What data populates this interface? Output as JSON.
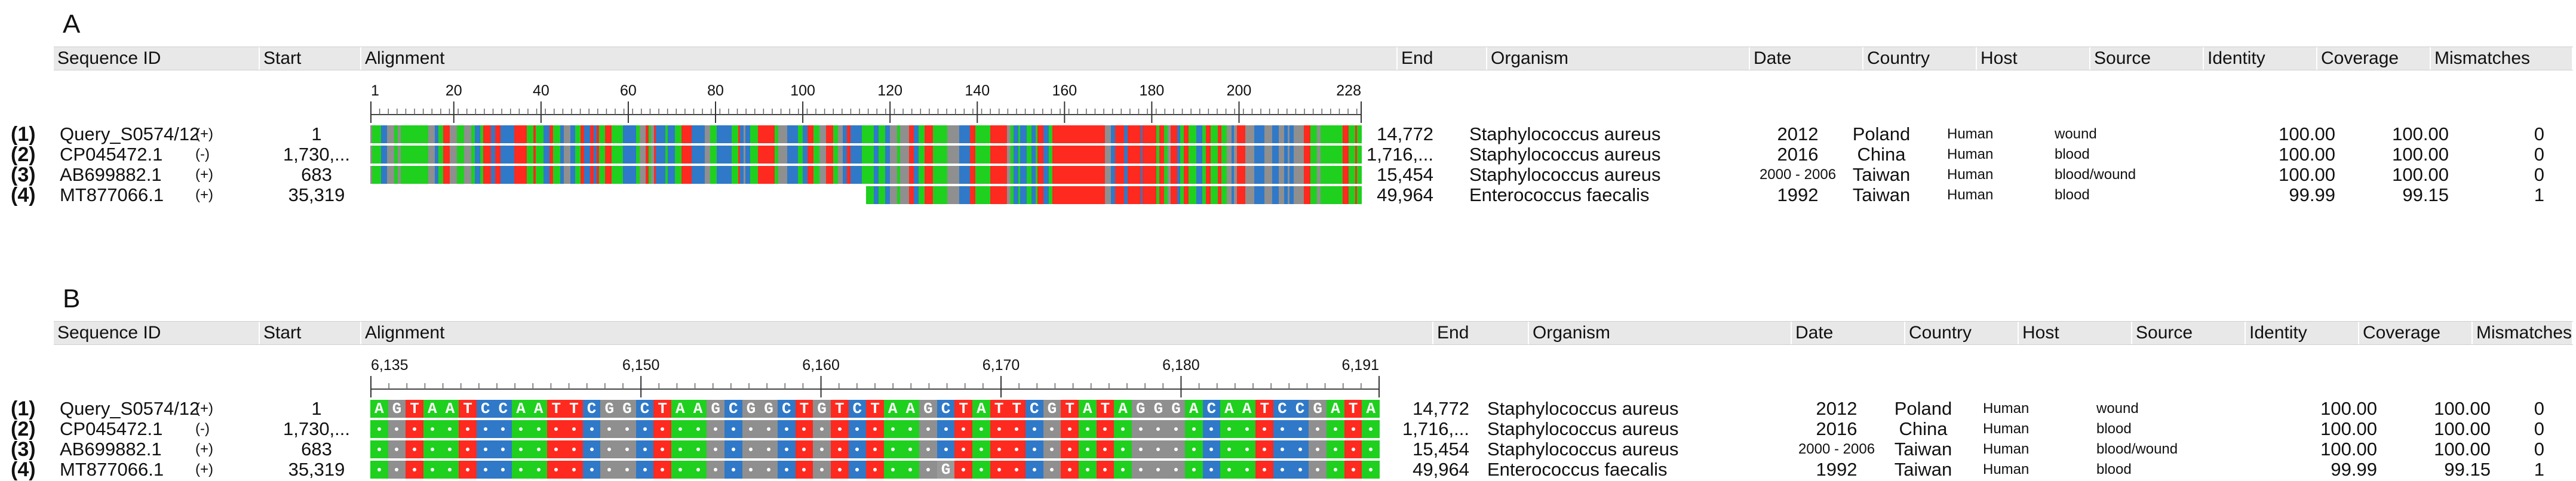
{
  "colors": {
    "A": "#1fd01f",
    "T": "#ff2a1f",
    "C": "#2f79c8",
    "G": "#8f8f8f",
    "header": "#e8e8e8",
    "match_dot": "#ffffff"
  },
  "columns": [
    "Sequence ID",
    "Start",
    "Alignment",
    "End",
    "Organism",
    "Date",
    "Country",
    "Host",
    "Source",
    "Identity",
    "Coverage",
    "Mismatches"
  ],
  "rows": [
    {
      "num": "(1)",
      "id": "Query_S0574/12",
      "strand": "(+)",
      "start": "1",
      "end": "14,772",
      "organism": "Staphylococcus aureus",
      "date": "2012",
      "country": "Poland",
      "host": "Human",
      "source": "wound",
      "identity": "100.00",
      "coverage": "100.00",
      "mismatches": "0"
    },
    {
      "num": "(2)",
      "id": "CP045472.1",
      "strand": "(-)",
      "start": "1,730,...",
      "end": "1,716,...",
      "organism": "Staphylococcus aureus",
      "date": "2016",
      "country": "China",
      "host": "Human",
      "source": "blood",
      "identity": "100.00",
      "coverage": "100.00",
      "mismatches": "0"
    },
    {
      "num": "(3)",
      "id": "AB699882.1",
      "strand": "(+)",
      "start": "683",
      "end": "15,454",
      "organism": "Staphylococcus aureus",
      "date": "2000 - 2006",
      "country": "Taiwan",
      "host": "Human",
      "source": "blood/wound",
      "identity": "100.00",
      "coverage": "100.00",
      "mismatches": "0"
    },
    {
      "num": "(4)",
      "id": "MT877066.1",
      "strand": "(+)",
      "start": "35,319",
      "end": "49,964",
      "organism": "Enterococcus faecalis",
      "date": "1992",
      "country": "Taiwan",
      "host": "Human",
      "source": "blood",
      "identity": "99.99",
      "coverage": "99.15",
      "mismatches": "1"
    }
  ],
  "panelA": {
    "label": "A",
    "ruler_ticks": [
      "1",
      "20",
      "40",
      "60",
      "80",
      "100",
      "120",
      "140",
      "160",
      "180",
      "200",
      "228"
    ],
    "ruler_positions": [
      1,
      20,
      40,
      60,
      80,
      100,
      120,
      140,
      160,
      180,
      200,
      228
    ],
    "ruler_span": [
      1,
      228
    ],
    "row4_start_fraction": 0.5
  },
  "panelB": {
    "label": "B",
    "ruler_ticks": [
      "6,135",
      "6,150",
      "6,160",
      "6,170",
      "6,180",
      "6,191"
    ],
    "ruler_positions": [
      6135,
      6150,
      6160,
      6170,
      6180,
      6191
    ],
    "ruler_span": [
      6135,
      6191
    ],
    "query_sequence": "AGTAATCCAATTCGGCTAAGCGGCTGTCTAAGCTATTCGTATAGGGACAATCCGATA",
    "mismatch_row": 4,
    "mismatch_index": 32,
    "mismatch_base": "G"
  }
}
